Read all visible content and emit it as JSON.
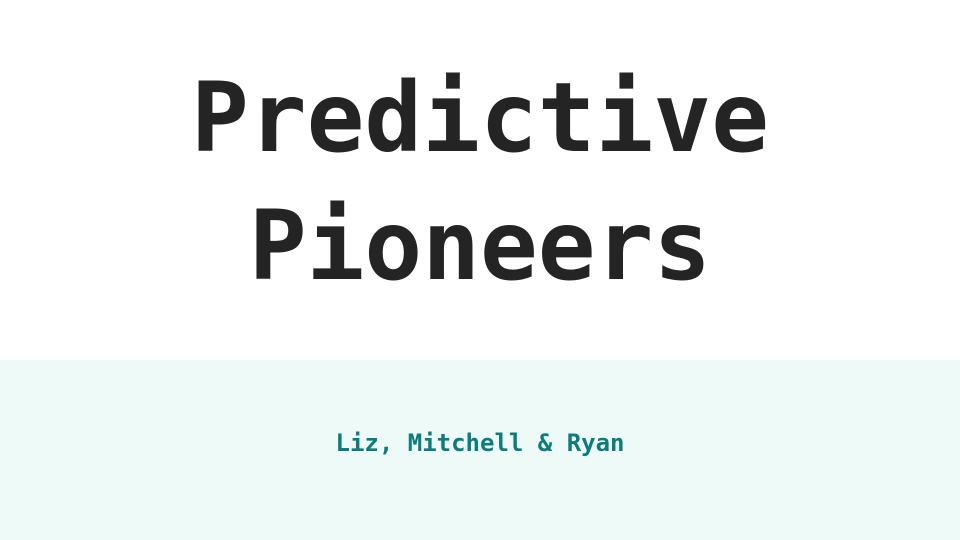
{
  "slide": {
    "title_lines": [
      "Predictive",
      "Pioneers"
    ],
    "subtitle": "Liz, Mitchell & Ryan"
  },
  "colors": {
    "background": "#ffffff",
    "title_text": "#242424",
    "band_background": "#eefaf7",
    "subtitle_text": "#0c7c7c"
  }
}
